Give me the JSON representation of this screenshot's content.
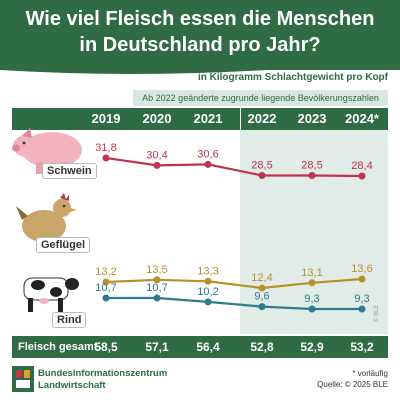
{
  "title": "Wie viel Fleisch essen die Menschen\nin Deutschland pro Jahr?",
  "subtitle": "in Kilogramm Schlachtgewicht pro Kopf",
  "note_band": "Ab 2022 geänderte zugrunde liegende Bevölkerungszahlen",
  "animals": {
    "pig_label": "Schwein",
    "poultry_label": "Geflügel",
    "cattle_label": "Rind"
  },
  "total_label": "Fleisch gesamt",
  "footer": {
    "org": "Bundesinformationszentrum\nLandwirtschaft",
    "footnote": "* vorläufig",
    "source": "Quelle: © 2025 BLE",
    "credit": "© BLE"
  },
  "colors": {
    "header_green": "#2f6b43",
    "schwein": "#c0334d",
    "gefluegel": "#b8902a",
    "rind": "#2f7a8c",
    "shade": "#e1ece9"
  },
  "chart_data": {
    "type": "line",
    "title": "Wie viel Fleisch essen die Menschen in Deutschland pro Jahr?",
    "subtitle": "in Kilogramm Schlachtgewicht pro Kopf",
    "categories": [
      "2019",
      "2020",
      "2021",
      "2022",
      "2023",
      "2024*"
    ],
    "series": [
      {
        "name": "Schwein",
        "values": [
          31.8,
          30.4,
          30.6,
          28.5,
          28.5,
          28.4
        ],
        "labels": [
          "31,8",
          "30,4",
          "30,6",
          "28,5",
          "28,5",
          "28,4"
        ]
      },
      {
        "name": "Geflügel",
        "values": [
          13.2,
          13.5,
          13.3,
          12.4,
          13.1,
          13.6
        ],
        "labels": [
          "13,2",
          "13,5",
          "13,3",
          "12,4",
          "13,1",
          "13,6"
        ]
      },
      {
        "name": "Rind",
        "values": [
          10.7,
          10.7,
          10.2,
          9.6,
          9.3,
          9.3
        ],
        "labels": [
          "10,7",
          "10,7",
          "10,2",
          "9,6",
          "9,3",
          "9,3"
        ]
      }
    ],
    "totals": {
      "name": "Fleisch gesamt",
      "values": [
        58.5,
        57.1,
        56.4,
        52.8,
        52.9,
        53.2
      ],
      "labels": [
        "58,5",
        "57,1",
        "56,4",
        "52,8",
        "52,9",
        "53,2"
      ]
    },
    "highlight_from": "2022",
    "grid": false
  }
}
